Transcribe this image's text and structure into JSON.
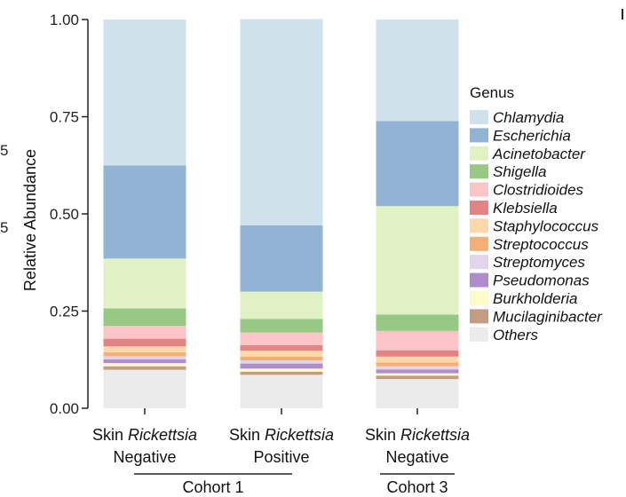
{
  "chart_data": {
    "type": "bar",
    "stacked": true,
    "ylabel": "Relative Abundance",
    "ylim": [
      0,
      1
    ],
    "yticks": [
      "0.00",
      "0.25",
      "0.50",
      "0.75",
      "1.00"
    ],
    "yticks_values": [
      0,
      0.25,
      0.5,
      0.75,
      1.0
    ],
    "categories": [
      {
        "line1_prefix": "Skin ",
        "line1_italic": "Rickettsia",
        "line2": "Negative"
      },
      {
        "line1_prefix": "Skin ",
        "line1_italic": "Rickettsia",
        "line2": "Positive"
      },
      {
        "line1_prefix": "Skin ",
        "line1_italic": "Rickettsia",
        "line2": "Negative"
      }
    ],
    "groups": [
      {
        "label": "Cohort 1",
        "categories": [
          0,
          1
        ]
      },
      {
        "label": "Cohort 3",
        "categories": [
          2
        ]
      }
    ],
    "legend_title": "Genus",
    "series": [
      {
        "name": "Others",
        "color": "#ebebeb",
        "values": [
          0.099,
          0.086,
          0.075
        ]
      },
      {
        "name": "Mucilaginibacter",
        "color": "#c49c82",
        "values": [
          0.009,
          0.008,
          0.009
        ]
      },
      {
        "name": "Burkholderia",
        "color": "#fdfbc7",
        "values": [
          0.008,
          0.008,
          0.006
        ]
      },
      {
        "name": "Pseudomonas",
        "color": "#b08dca",
        "values": [
          0.01,
          0.013,
          0.01
        ]
      },
      {
        "name": "Streptomyces",
        "color": "#e1d4eb",
        "values": [
          0.008,
          0.008,
          0.008
        ]
      },
      {
        "name": "Streptococcus",
        "color": "#f5ae76",
        "values": [
          0.01,
          0.01,
          0.01
        ]
      },
      {
        "name": "Staphylococcus",
        "color": "#fdd8ab",
        "values": [
          0.015,
          0.015,
          0.015
        ]
      },
      {
        "name": "Klebsiella",
        "color": "#e48383",
        "values": [
          0.02,
          0.014,
          0.016
        ]
      },
      {
        "name": "Clostridioides",
        "color": "#fbc4c7",
        "values": [
          0.033,
          0.033,
          0.05
        ]
      },
      {
        "name": "Shigella",
        "color": "#98c984",
        "values": [
          0.045,
          0.035,
          0.042
        ]
      },
      {
        "name": "Acinetobacter",
        "color": "#e0f2c4",
        "values": [
          0.128,
          0.07,
          0.279
        ]
      },
      {
        "name": "Escherichia",
        "color": "#92b3d4",
        "values": [
          0.24,
          0.171,
          0.219
        ]
      },
      {
        "name": "Chlamydia",
        "color": "#cfe1eb",
        "values": [
          0.375,
          0.53,
          0.261
        ]
      }
    ],
    "legend_order": [
      "Chlamydia",
      "Escherichia",
      "Acinetobacter",
      "Shigella",
      "Clostridioides",
      "Klebsiella",
      "Staphylococcus",
      "Streptococcus",
      "Streptomyces",
      "Pseudomonas",
      "Burkholderia",
      "Mucilaginibacter",
      "Others"
    ],
    "edge_fragments": [
      "5",
      "5"
    ]
  }
}
